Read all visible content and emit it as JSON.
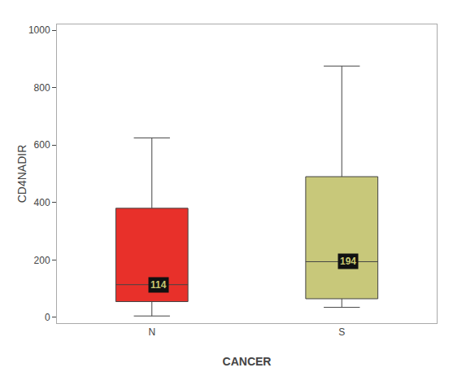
{
  "chart_data": {
    "type": "box",
    "categories": [
      "N",
      "S"
    ],
    "q1": [
      55,
      65
    ],
    "median": [
      114,
      194
    ],
    "q3": [
      380,
      490
    ],
    "whisker_low": [
      5,
      35
    ],
    "whisker_high": [
      625,
      875
    ],
    "colors": [
      "#e8302a",
      "#c8c87a"
    ],
    "data_labels": true,
    "xlabel": "CANCER",
    "ylabel": "CD4NADIR",
    "ylim": [
      -20,
      1020
    ],
    "yticks": [
      0,
      200,
      400,
      600,
      800,
      1000
    ],
    "grid": false
  }
}
